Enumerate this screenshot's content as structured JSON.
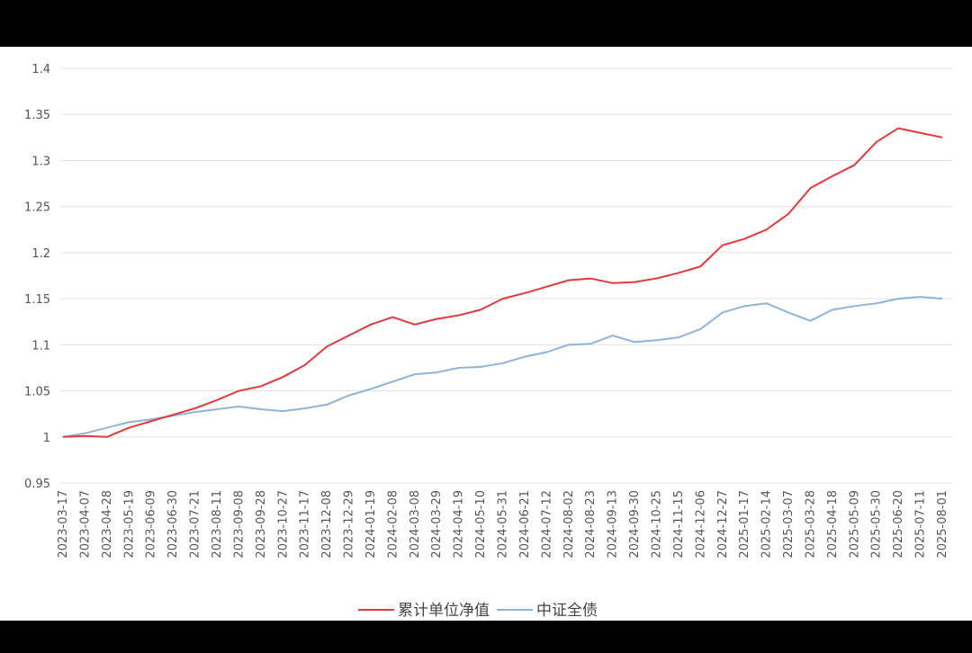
{
  "chart_data": {
    "type": "line",
    "categories": [
      "2023-03-17",
      "2023-04-07",
      "2023-04-28",
      "2023-05-19",
      "2023-06-09",
      "2023-06-30",
      "2023-07-21",
      "2023-08-11",
      "2023-09-08",
      "2023-09-28",
      "2023-10-27",
      "2023-11-17",
      "2023-12-08",
      "2023-12-29",
      "2024-01-19",
      "2024-02-08",
      "2024-03-08",
      "2024-03-29",
      "2024-04-19",
      "2024-05-10",
      "2024-05-31",
      "2024-06-21",
      "2024-07-12",
      "2024-08-02",
      "2024-08-23",
      "2024-09-13",
      "2024-09-30",
      "2024-10-25",
      "2024-11-15",
      "2024-12-06",
      "2024-12-27",
      "2025-01-17",
      "2025-02-14",
      "2025-03-07",
      "2025-03-28",
      "2025-04-18",
      "2025-05-09",
      "2025-05-30",
      "2025-06-20",
      "2025-07-11",
      "2025-08-01"
    ],
    "series": [
      {
        "name": "累计单位净值",
        "color": "#e0393e",
        "values": [
          1.0,
          1.001,
          1.0,
          1.01,
          1.017,
          1.024,
          1.031,
          1.04,
          1.05,
          1.055,
          1.065,
          1.078,
          1.098,
          1.11,
          1.122,
          1.13,
          1.122,
          1.128,
          1.132,
          1.138,
          1.15,
          1.156,
          1.163,
          1.17,
          1.172,
          1.167,
          1.168,
          1.172,
          1.178,
          1.185,
          1.208,
          1.215,
          1.225,
          1.242,
          1.27,
          1.283,
          1.295,
          1.32,
          1.335,
          1.33,
          1.325
        ]
      },
      {
        "name": "中证全债",
        "color": "#8fb4d9",
        "values": [
          1.0,
          1.004,
          1.01,
          1.016,
          1.019,
          1.023,
          1.027,
          1.03,
          1.033,
          1.03,
          1.028,
          1.031,
          1.035,
          1.045,
          1.052,
          1.06,
          1.068,
          1.07,
          1.075,
          1.076,
          1.08,
          1.087,
          1.092,
          1.1,
          1.101,
          1.11,
          1.103,
          1.105,
          1.108,
          1.117,
          1.135,
          1.142,
          1.145,
          1.135,
          1.126,
          1.138,
          1.142,
          1.145,
          1.15,
          1.152,
          1.15
        ]
      }
    ],
    "ylim": [
      0.95,
      1.4
    ],
    "yticks": [
      0.95,
      1,
      1.05,
      1.1,
      1.15,
      1.2,
      1.25,
      1.3,
      1.35,
      1.4
    ],
    "grid": true,
    "legend": "bottom"
  }
}
